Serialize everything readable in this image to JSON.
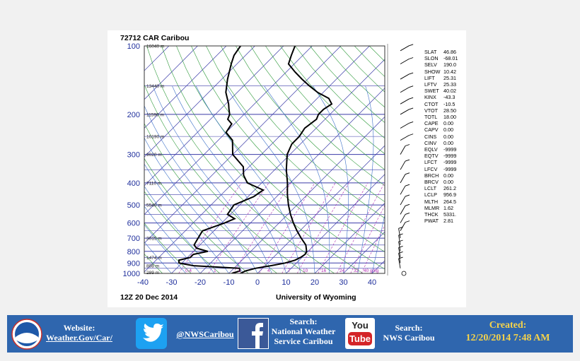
{
  "chart_data": {
    "type": "skew-t log-p sounding",
    "title": "72712 CAR Caribou",
    "date_label": "12Z 20 Dec 2014",
    "source_label": "University of Wyoming",
    "pressure_ticks": [
      "100",
      "200",
      "300",
      "400",
      "500",
      "600",
      "700",
      "800",
      "900",
      "1000"
    ],
    "temperature_ticks": [
      "-40",
      "-30",
      "-20",
      "-10",
      "0",
      "10",
      "20",
      "30",
      "40"
    ],
    "height_labels": [
      "16040 m",
      "13440 m",
      "11590 m",
      "10190 m",
      "9020 m",
      "7110 m",
      "5540 m",
      "3015 m",
      "1474 m",
      "808 m",
      "289 m"
    ],
    "mixing_ratio_labels": [
      "0.4",
      "1",
      "2",
      "4",
      "7",
      "10",
      "16",
      "24",
      "32",
      "40 g/kg"
    ],
    "temperature_profile": [
      {
        "p": 1000,
        "t": -6
      },
      {
        "p": 975,
        "t": -5
      },
      {
        "p": 950,
        "t": -2.5
      },
      {
        "p": 925,
        "t": 2
      },
      {
        "p": 900,
        "t": 6
      },
      {
        "p": 875,
        "t": 8.5
      },
      {
        "p": 850,
        "t": 9.5
      },
      {
        "p": 825,
        "t": 10
      },
      {
        "p": 800,
        "t": 9.5
      },
      {
        "p": 750,
        "t": 7
      },
      {
        "p": 700,
        "t": 3
      },
      {
        "p": 650,
        "t": -1
      },
      {
        "p": 600,
        "t": -5
      },
      {
        "p": 550,
        "t": -9
      },
      {
        "p": 500,
        "t": -13
      },
      {
        "p": 450,
        "t": -17
      },
      {
        "p": 400,
        "t": -21
      },
      {
        "p": 350,
        "t": -26
      },
      {
        "p": 300,
        "t": -31
      },
      {
        "p": 270,
        "t": -33
      },
      {
        "p": 250,
        "t": -33
      },
      {
        "p": 230,
        "t": -34
      },
      {
        "p": 210,
        "t": -33
      },
      {
        "p": 200,
        "t": -34
      },
      {
        "p": 190,
        "t": -34
      },
      {
        "p": 180,
        "t": -33
      },
      {
        "p": 170,
        "t": -36
      },
      {
        "p": 160,
        "t": -42
      },
      {
        "p": 150,
        "t": -47
      },
      {
        "p": 140,
        "t": -52
      },
      {
        "p": 130,
        "t": -57
      },
      {
        "p": 120,
        "t": -62
      },
      {
        "p": 110,
        "t": -64
      },
      {
        "p": 100,
        "t": -66
      }
    ],
    "dewpoint_profile": [
      {
        "p": 1000,
        "t": -9
      },
      {
        "p": 975,
        "t": -7
      },
      {
        "p": 950,
        "t": -8
      },
      {
        "p": 925,
        "t": -25
      },
      {
        "p": 900,
        "t": -31
      },
      {
        "p": 875,
        "t": -32
      },
      {
        "p": 850,
        "t": -29
      },
      {
        "p": 825,
        "t": -29
      },
      {
        "p": 800,
        "t": -25
      },
      {
        "p": 775,
        "t": -30
      },
      {
        "p": 750,
        "t": -32
      },
      {
        "p": 700,
        "t": -33
      },
      {
        "p": 650,
        "t": -34
      },
      {
        "p": 600,
        "t": -29
      },
      {
        "p": 575,
        "t": -27
      },
      {
        "p": 550,
        "t": -31
      },
      {
        "p": 500,
        "t": -32
      },
      {
        "p": 460,
        "t": -28
      },
      {
        "p": 430,
        "t": -27
      },
      {
        "p": 400,
        "t": -35
      },
      {
        "p": 370,
        "t": -39
      },
      {
        "p": 340,
        "t": -42
      },
      {
        "p": 300,
        "t": -50
      },
      {
        "p": 260,
        "t": -55
      },
      {
        "p": 240,
        "t": -60
      },
      {
        "p": 220,
        "t": -61
      },
      {
        "p": 210,
        "t": -64
      },
      {
        "p": 200,
        "t": -65
      },
      {
        "p": 190,
        "t": -67
      },
      {
        "p": 180,
        "t": -69
      },
      {
        "p": 160,
        "t": -74
      },
      {
        "p": 140,
        "t": -78
      },
      {
        "p": 120,
        "t": -82
      },
      {
        "p": 110,
        "t": -84
      },
      {
        "p": 100,
        "t": -85
      }
    ]
  },
  "station_indices": [
    {
      "key": "SLAT",
      "value": "46.86"
    },
    {
      "key": "SLON",
      "value": "-68.01"
    },
    {
      "key": "SELV",
      "value": "190.0"
    },
    {
      "key": "SHOW",
      "value": "10.42"
    },
    {
      "key": "LIFT",
      "value": "25.31"
    },
    {
      "key": "LFTV",
      "value": "25.33"
    },
    {
      "key": "SWET",
      "value": "40.02"
    },
    {
      "key": "KINX",
      "value": "-43.3"
    },
    {
      "key": "CTOT",
      "value": "-10.5"
    },
    {
      "key": "VTOT",
      "value": "28.50"
    },
    {
      "key": "TOTL",
      "value": "18.00"
    },
    {
      "key": "CAPE",
      "value": "0.00"
    },
    {
      "key": "CAPV",
      "value": "0.00"
    },
    {
      "key": "CINS",
      "value": "0.00"
    },
    {
      "key": "CINV",
      "value": "0.00"
    },
    {
      "key": "EQLV",
      "value": "-9999"
    },
    {
      "key": "EQTV",
      "value": "-9999"
    },
    {
      "key": "LFCT",
      "value": "-9999"
    },
    {
      "key": "LFCV",
      "value": "-9999"
    },
    {
      "key": "BRCH",
      "value": "0.00"
    },
    {
      "key": "BRCV",
      "value": "0.00"
    },
    {
      "key": "LCLT",
      "value": "261.2"
    },
    {
      "key": "LCLP",
      "value": "956.9"
    },
    {
      "key": "MLTH",
      "value": "264.5"
    },
    {
      "key": "MLMR",
      "value": "1.62"
    },
    {
      "key": "THCK",
      "value": "5331."
    },
    {
      "key": "PWAT",
      "value": "2.81"
    }
  ],
  "footer": {
    "website_label": "Website:",
    "website_url": "Weather.Gov/Car/",
    "twitter_handle": "@NWSCaribou",
    "facebook_search_label": "Search:",
    "facebook_search_line1": "National Weather",
    "facebook_search_line2": "Service Caribou",
    "youtube_logo_top": "You",
    "youtube_logo_bottom": "Tube",
    "youtube_search_label": "Search:",
    "youtube_search_value": "NWS Caribou",
    "created_label": "Created:",
    "created_value": "12/20/2014 7:48 AM",
    "logo_text": "NOAA"
  },
  "colors": {
    "isobar": "#3a3aa8",
    "isotherm": "#3a3aa8",
    "dry_adiabat": "#2e9a3a",
    "moist_adiabat": "#3c70c8",
    "mixing_ratio": "#b02ab0",
    "profile": "#000000",
    "footer_bg": "#2f66ae",
    "created_text": "#f6d34a"
  }
}
